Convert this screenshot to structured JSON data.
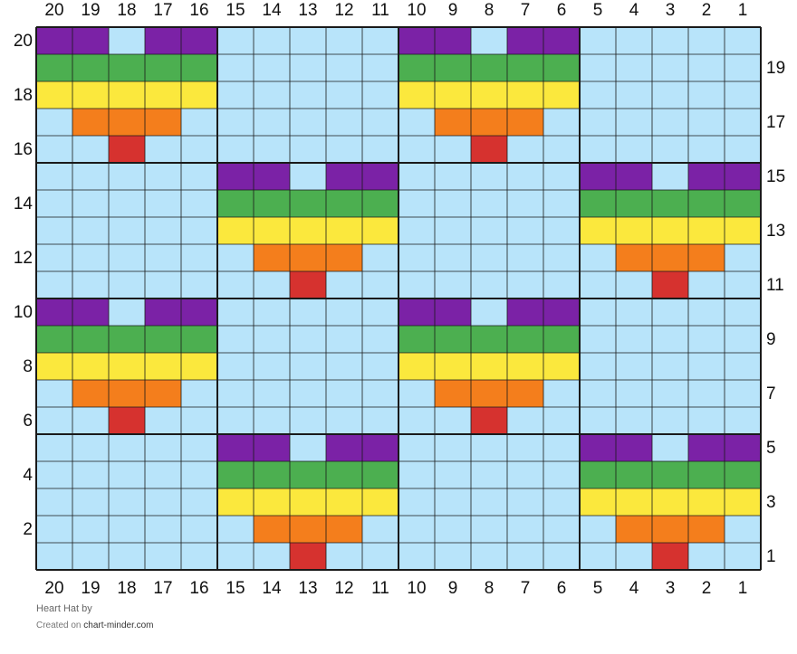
{
  "chart": {
    "title": "Heart Hat",
    "by_label": "by",
    "credit_prefix": "Created on",
    "credit_site": "chart-minder.com",
    "columns": 20,
    "rows": 20,
    "column_numbers": [
      "20",
      "19",
      "18",
      "17",
      "16",
      "15",
      "14",
      "13",
      "12",
      "11",
      "10",
      "9",
      "8",
      "7",
      "6",
      "5",
      "4",
      "3",
      "2",
      "1"
    ],
    "row_numbers_left": [
      "20",
      "18",
      "16",
      "14",
      "12",
      "10",
      "8",
      "6",
      "4",
      "2"
    ],
    "row_numbers_right": [
      "19",
      "17",
      "15",
      "13",
      "11",
      "9",
      "7",
      "5",
      "3",
      "1"
    ],
    "colors": {
      "B": "#b8e4fa",
      "P": "#7b22a6",
      "G": "#4caf50",
      "Y": "#fbe83d",
      "O": "#f47e1c",
      "R": "#d6322f"
    },
    "grid_rows": [
      "PPBPPBBBBBPPBPPBBBBB",
      "GGGGGBBBBBGGGGGBBBBB",
      "YYYYYBBBBBYYYYYBBBBB",
      "BOOOBBBBBBBOOOBBBBBB",
      "BBRBBBBBBBBBRBBBBBBB",
      "BBBBBPPBPPBBBBBPPBPP",
      "BBBBBGGGGGBBBBBGGGGG",
      "BBBBBYYYYYBBBBBYYYYY",
      "BBBBBBOOOBBBBBBBOOOB",
      "BBBBBBBRBBBBBBBBBRBB",
      "PPBPPBBBBBPPBPPBBBBB",
      "GGGGGBBBBBGGGGGBBBBB",
      "YYYYYBBBBBYYYYYBBBBB",
      "BOOOBBBBBBBOOOBBBBBB",
      "BBRBBBBBBBBBRBBBBBBB",
      "BBBBBPPBPPBBBBBPPBPP",
      "BBBBBGGGGGBBBBBGGGGG",
      "BBBBBYYYYYBBBBBYYYYY",
      "BBBBBBOOOBBBBBBBOOOB",
      "BBBBBBBRBBBBBBBBBRBB"
    ]
  }
}
